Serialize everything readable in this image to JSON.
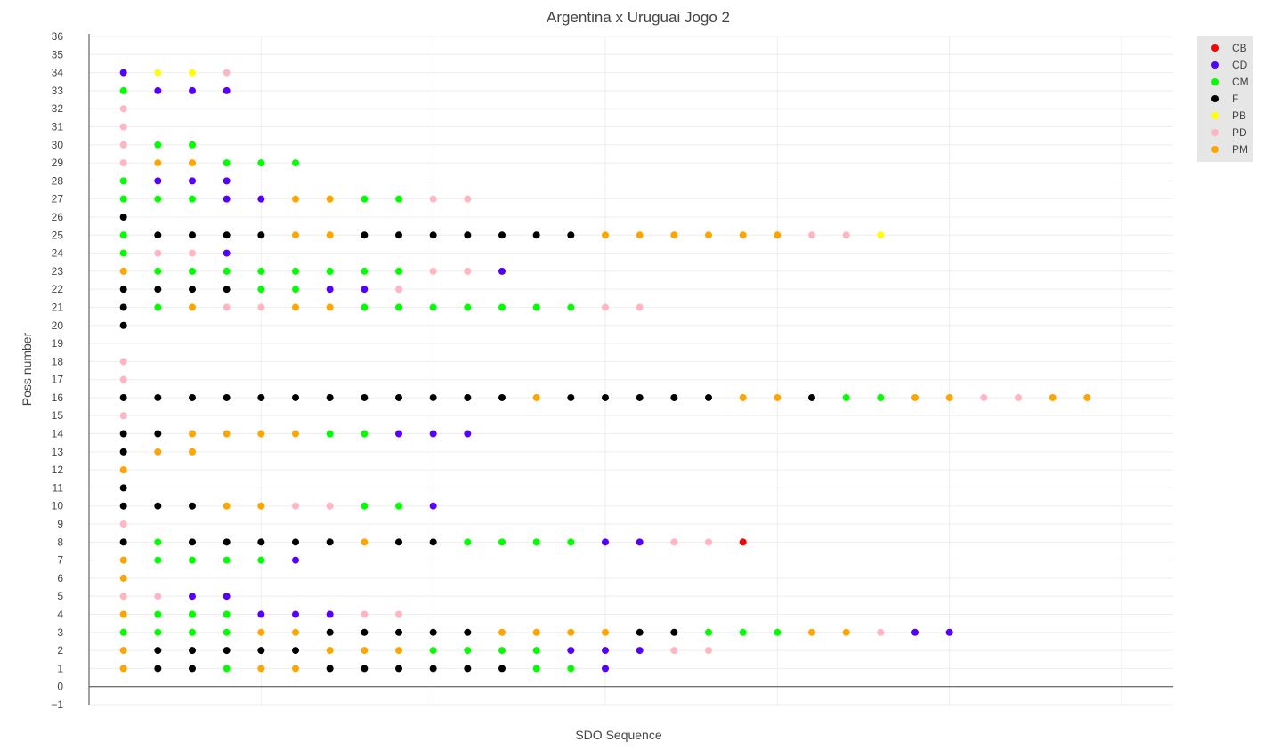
{
  "chart_data": {
    "type": "scatter",
    "title": "Argentina x Uruguai Jogo 2",
    "xlabel": "SDO Sequence",
    "ylabel": "Poss number",
    "xlim": [
      -1,
      30.5
    ],
    "ylim": [
      -1,
      36
    ],
    "x_ticks_shown": false,
    "y_ticks": [
      -1,
      0,
      1,
      2,
      3,
      4,
      5,
      6,
      7,
      8,
      9,
      10,
      11,
      12,
      13,
      14,
      15,
      16,
      17,
      18,
      19,
      20,
      21,
      22,
      23,
      24,
      25,
      26,
      27,
      28,
      29,
      30,
      31,
      32,
      33,
      34,
      35,
      36
    ],
    "grid": true,
    "legend_position": "top-right",
    "colors": {
      "CB": "#ff0000",
      "CD": "#5500ff",
      "CM": "#00ff00",
      "F": "#000000",
      "PB": "#ffff00",
      "PD": "#ffb6c1",
      "PM": "#ffa500"
    },
    "legend": [
      "CB",
      "CD",
      "CM",
      "F",
      "PB",
      "PD",
      "PM"
    ],
    "possessions": [
      {
        "poss": 1,
        "sequence": [
          "PM",
          "F",
          "F",
          "CM",
          "PM",
          "PM",
          "F",
          "F",
          "F",
          "F",
          "F",
          "F",
          "CM",
          "CM",
          "CD"
        ]
      },
      {
        "poss": 2,
        "sequence": [
          "PM",
          "F",
          "F",
          "F",
          "F",
          "F",
          "PM",
          "PM",
          "PM",
          "CM",
          "CM",
          "CM",
          "CM",
          "CD",
          "CD",
          "CD",
          "PD",
          "PD"
        ]
      },
      {
        "poss": 3,
        "sequence": [
          "CM",
          "CM",
          "CM",
          "CM",
          "PM",
          "PM",
          "F",
          "F",
          "F",
          "F",
          "F",
          "PM",
          "PM",
          "PM",
          "PM",
          "F",
          "F",
          "CM",
          "CM",
          "CM",
          "PM",
          "PM",
          "PD",
          "CD",
          "CD"
        ]
      },
      {
        "poss": 4,
        "sequence": [
          "PM",
          "CM",
          "CM",
          "CM",
          "CD",
          "CD",
          "CD",
          "PD",
          "PD"
        ]
      },
      {
        "poss": 5,
        "sequence": [
          "PD",
          "PD",
          "CD",
          "CD"
        ]
      },
      {
        "poss": 6,
        "sequence": [
          "PM"
        ]
      },
      {
        "poss": 7,
        "sequence": [
          "PM",
          "CM",
          "CM",
          "CM",
          "CM",
          "CD"
        ]
      },
      {
        "poss": 8,
        "sequence": [
          "F",
          "CM",
          "F",
          "F",
          "F",
          "F",
          "F",
          "PM",
          "F",
          "F",
          "CM",
          "CM",
          "CM",
          "CM",
          "CD",
          "CD",
          "PD",
          "PD",
          "CB"
        ]
      },
      {
        "poss": 9,
        "sequence": [
          "PD"
        ]
      },
      {
        "poss": 10,
        "sequence": [
          "F",
          "F",
          "F",
          "PM",
          "PM",
          "PD",
          "PD",
          "CM",
          "CM",
          "CD"
        ]
      },
      {
        "poss": 11,
        "sequence": [
          "F"
        ]
      },
      {
        "poss": 12,
        "sequence": [
          "PM"
        ]
      },
      {
        "poss": 13,
        "sequence": [
          "F",
          "PM",
          "PM"
        ]
      },
      {
        "poss": 14,
        "sequence": [
          "F",
          "F",
          "PM",
          "PM",
          "PM",
          "PM",
          "CM",
          "CM",
          "CD",
          "CD",
          "CD"
        ]
      },
      {
        "poss": 15,
        "sequence": [
          "PD"
        ]
      },
      {
        "poss": 16,
        "sequence": [
          "F",
          "F",
          "F",
          "F",
          "F",
          "F",
          "F",
          "F",
          "F",
          "F",
          "F",
          "F",
          "PM",
          "F",
          "F",
          "F",
          "F",
          "F",
          "PM",
          "PM",
          "F",
          "CM",
          "CM",
          "PM",
          "PM",
          "PD",
          "PD",
          "PM",
          "PM"
        ]
      },
      {
        "poss": 17,
        "sequence": [
          "PD"
        ]
      },
      {
        "poss": 18,
        "sequence": [
          "PD"
        ]
      },
      {
        "poss": 20,
        "sequence": [
          "F"
        ]
      },
      {
        "poss": 21,
        "sequence": [
          "F",
          "CM",
          "PM",
          "PD",
          "PD",
          "PM",
          "PM",
          "CM",
          "CM",
          "CM",
          "CM",
          "CM",
          "CM",
          "CM",
          "PD",
          "PD"
        ]
      },
      {
        "poss": 22,
        "sequence": [
          "F",
          "F",
          "F",
          "F",
          "CM",
          "CM",
          "CD",
          "CD",
          "PD"
        ]
      },
      {
        "poss": 23,
        "sequence": [
          "PM",
          "CM",
          "CM",
          "CM",
          "CM",
          "CM",
          "CM",
          "CM",
          "CM",
          "PD",
          "PD",
          "CD"
        ]
      },
      {
        "poss": 24,
        "sequence": [
          "CM",
          "PD",
          "PD",
          "CD"
        ]
      },
      {
        "poss": 25,
        "sequence": [
          "CM",
          "F",
          "F",
          "F",
          "F",
          "PM",
          "PM",
          "F",
          "F",
          "F",
          "F",
          "F",
          "F",
          "F",
          "PM",
          "PM",
          "PM",
          "PM",
          "PM",
          "PM",
          "PD",
          "PD",
          "PB"
        ]
      },
      {
        "poss": 26,
        "sequence": [
          "F"
        ]
      },
      {
        "poss": 27,
        "sequence": [
          "CM",
          "CM",
          "CM",
          "CD",
          "CD",
          "PM",
          "PM",
          "CM",
          "CM",
          "PD",
          "PD"
        ]
      },
      {
        "poss": 28,
        "sequence": [
          "CM",
          "CD",
          "CD",
          "CD"
        ]
      },
      {
        "poss": 29,
        "sequence": [
          "PD",
          "PM",
          "PM",
          "CM",
          "CM",
          "CM"
        ]
      },
      {
        "poss": 30,
        "sequence": [
          "PD",
          "CM",
          "CM"
        ]
      },
      {
        "poss": 31,
        "sequence": [
          "PD"
        ]
      },
      {
        "poss": 32,
        "sequence": [
          "PD"
        ]
      },
      {
        "poss": 33,
        "sequence": [
          "CM",
          "CD",
          "CD",
          "CD"
        ]
      },
      {
        "poss": 34,
        "sequence": [
          "CD",
          "PB",
          "PB",
          "PD"
        ]
      }
    ]
  }
}
